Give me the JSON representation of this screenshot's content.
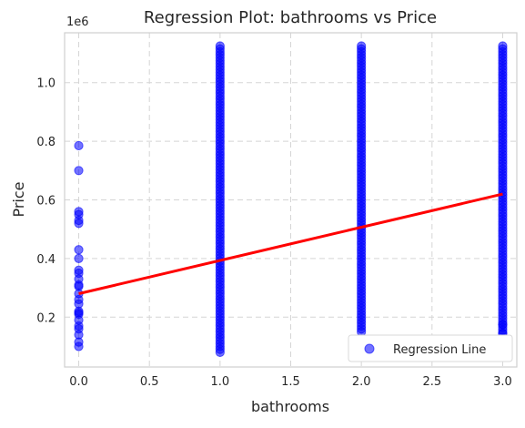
{
  "chart_data": {
    "type": "scatter",
    "title": "Regression Plot: bathrooms vs Price",
    "xlabel": "bathrooms",
    "ylabel": "Price",
    "y_offset_label": "1e6",
    "xlim": [
      -0.1,
      3.1
    ],
    "ylim": [
      0.03,
      1.17
    ],
    "y_scale_factor": 1000000,
    "x_ticks": [
      0.0,
      0.5,
      1.0,
      1.5,
      2.0,
      2.5,
      3.0
    ],
    "x_tick_labels": [
      "0.0",
      "0.5",
      "1.0",
      "1.5",
      "2.0",
      "2.5",
      "3.0"
    ],
    "y_ticks": [
      0.2,
      0.4,
      0.6,
      0.8,
      1.0
    ],
    "y_tick_labels": [
      "0.2",
      "0.4",
      "0.6",
      "0.8",
      "1.0"
    ],
    "grid": true,
    "legend_position": "bottom-right",
    "series": [
      {
        "name": "Regression Line",
        "kind": "scatter",
        "color": "#0000ff",
        "groups": [
          {
            "x": 0,
            "y_values": [
              0.1,
              0.115,
              0.14,
              0.16,
              0.17,
              0.19,
              0.21,
              0.215,
              0.22,
              0.245,
              0.26,
              0.28,
              0.305,
              0.31,
              0.33,
              0.35,
              0.36,
              0.4,
              0.43,
              0.52,
              0.53,
              0.55,
              0.56,
              0.7,
              0.785
            ]
          },
          {
            "x": 1,
            "y_min": 0.08,
            "y_max": 1.125
          },
          {
            "x": 2,
            "y_min": 0.15,
            "y_max": 1.125
          },
          {
            "x": 3,
            "y_min": 0.145,
            "y_max": 1.125,
            "outliers": [
              0.145,
              0.175
            ]
          }
        ]
      },
      {
        "name": "",
        "kind": "line",
        "color": "#ff0000",
        "x": [
          0,
          3
        ],
        "y": [
          0.28,
          0.62
        ]
      }
    ]
  }
}
